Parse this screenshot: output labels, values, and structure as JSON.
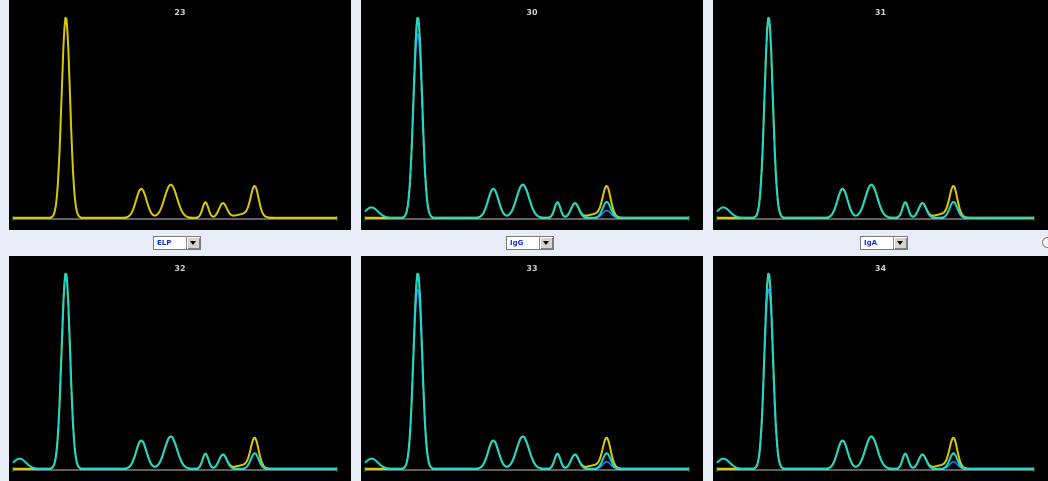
{
  "colors": {
    "panel_background": "#000000",
    "strip_background": "#e8ecf7",
    "baseline": "#bfbfbf",
    "trace_yellow": "#d8c800",
    "trace_cyan": "#1fd6c8",
    "trace_blue": "#1f8fff",
    "baseline_tick": "#2a8a2a",
    "select_text": "#1a2cff"
  },
  "panels": [
    {
      "id": "23",
      "traces": [
        "yellow"
      ]
    },
    {
      "id": "30",
      "traces": [
        "yellow",
        "blue",
        "cyan"
      ]
    },
    {
      "id": "31",
      "traces": [
        "yellow",
        "cyan"
      ]
    },
    {
      "id": "32",
      "traces": [
        "yellow",
        "cyan"
      ]
    },
    {
      "id": "33",
      "traces": [
        "yellow",
        "blue",
        "cyan"
      ]
    },
    {
      "id": "34",
      "traces": [
        "yellow",
        "blue",
        "cyan"
      ]
    }
  ],
  "selectors": [
    {
      "value": "ELP",
      "icon": "chevron-down-icon"
    },
    {
      "value": "IgG",
      "icon": "chevron-down-icon"
    },
    {
      "value": "IgA",
      "icon": "chevron-down-icon"
    }
  ]
}
